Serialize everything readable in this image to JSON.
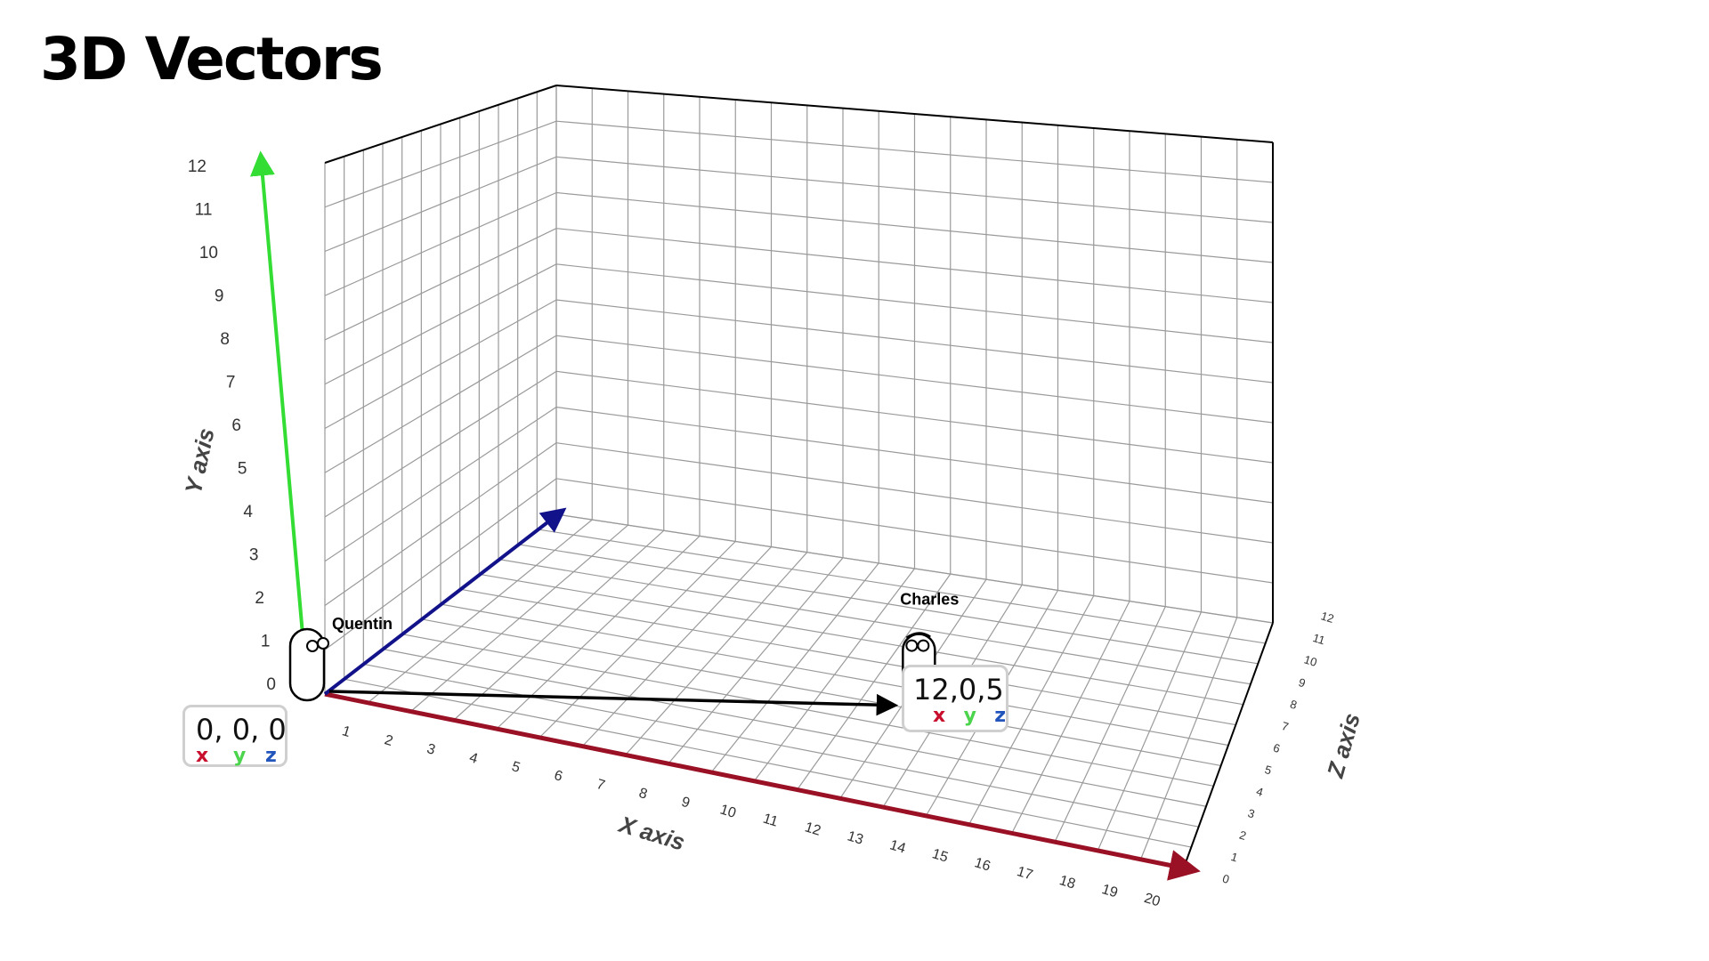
{
  "title": "3D Vectors",
  "colors": {
    "x_axis": "#9a1024",
    "y_axis": "#33dd33",
    "z_axis": "#12128a",
    "grid": "#9a9a9a",
    "vector": "#000000",
    "label_x": "#c8102e",
    "label_y": "#4cd44c",
    "label_z": "#2255bb"
  },
  "axes": {
    "x": {
      "title": "X axis",
      "ticks": [
        "1",
        "2",
        "3",
        "4",
        "5",
        "6",
        "7",
        "8",
        "9",
        "10",
        "11",
        "12",
        "13",
        "14",
        "15",
        "16",
        "17",
        "18",
        "19",
        "20"
      ],
      "range": [
        0,
        20
      ]
    },
    "y": {
      "title": "Y axis",
      "ticks": [
        "0",
        "1",
        "2",
        "3",
        "4",
        "5",
        "6",
        "7",
        "8",
        "9",
        "10",
        "11",
        "12"
      ],
      "range": [
        0,
        12
      ]
    },
    "z": {
      "title": "Z axis",
      "ticks": [
        "0",
        "1",
        "2",
        "3",
        "4",
        "5",
        "6",
        "7",
        "8",
        "9",
        "10",
        "11",
        "12"
      ],
      "range": [
        0,
        12
      ]
    }
  },
  "characters": [
    {
      "name": "Quentin",
      "position": [
        0,
        0,
        0
      ]
    },
    {
      "name": "Charles",
      "position": [
        12,
        0,
        5
      ]
    }
  ],
  "vector": {
    "from": [
      0,
      0,
      0
    ],
    "to": [
      12,
      0,
      5
    ],
    "icon": "arrow-icon"
  },
  "labels": {
    "origin": {
      "value": "0, 0, 0",
      "x": "x",
      "y": "y",
      "z": "z"
    },
    "charles": {
      "value": "12,0,5",
      "x": "x",
      "y": "y",
      "z": "z"
    }
  }
}
